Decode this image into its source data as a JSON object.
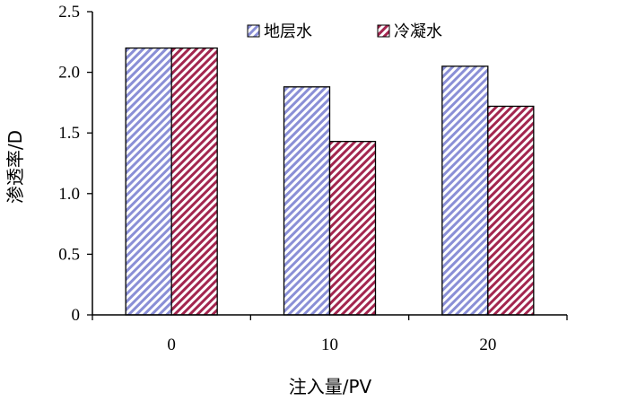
{
  "chart_data": {
    "type": "bar",
    "categories": [
      "0",
      "10",
      "20"
    ],
    "series": [
      {
        "name": "地层水",
        "values": [
          2.2,
          1.88,
          2.05
        ],
        "color": "#8a8fd6"
      },
      {
        "name": "冷凝水",
        "values": [
          2.2,
          1.43,
          1.72
        ],
        "color": "#a3264f"
      }
    ],
    "ylim": [
      0,
      2.5
    ],
    "yticks": [
      "0",
      "0.5",
      "1.0",
      "1.5",
      "2.0",
      "2.5"
    ],
    "xlabel": "注入量/PV",
    "ylabel": "渗透率/D",
    "legend_position": "top",
    "grid": false
  }
}
